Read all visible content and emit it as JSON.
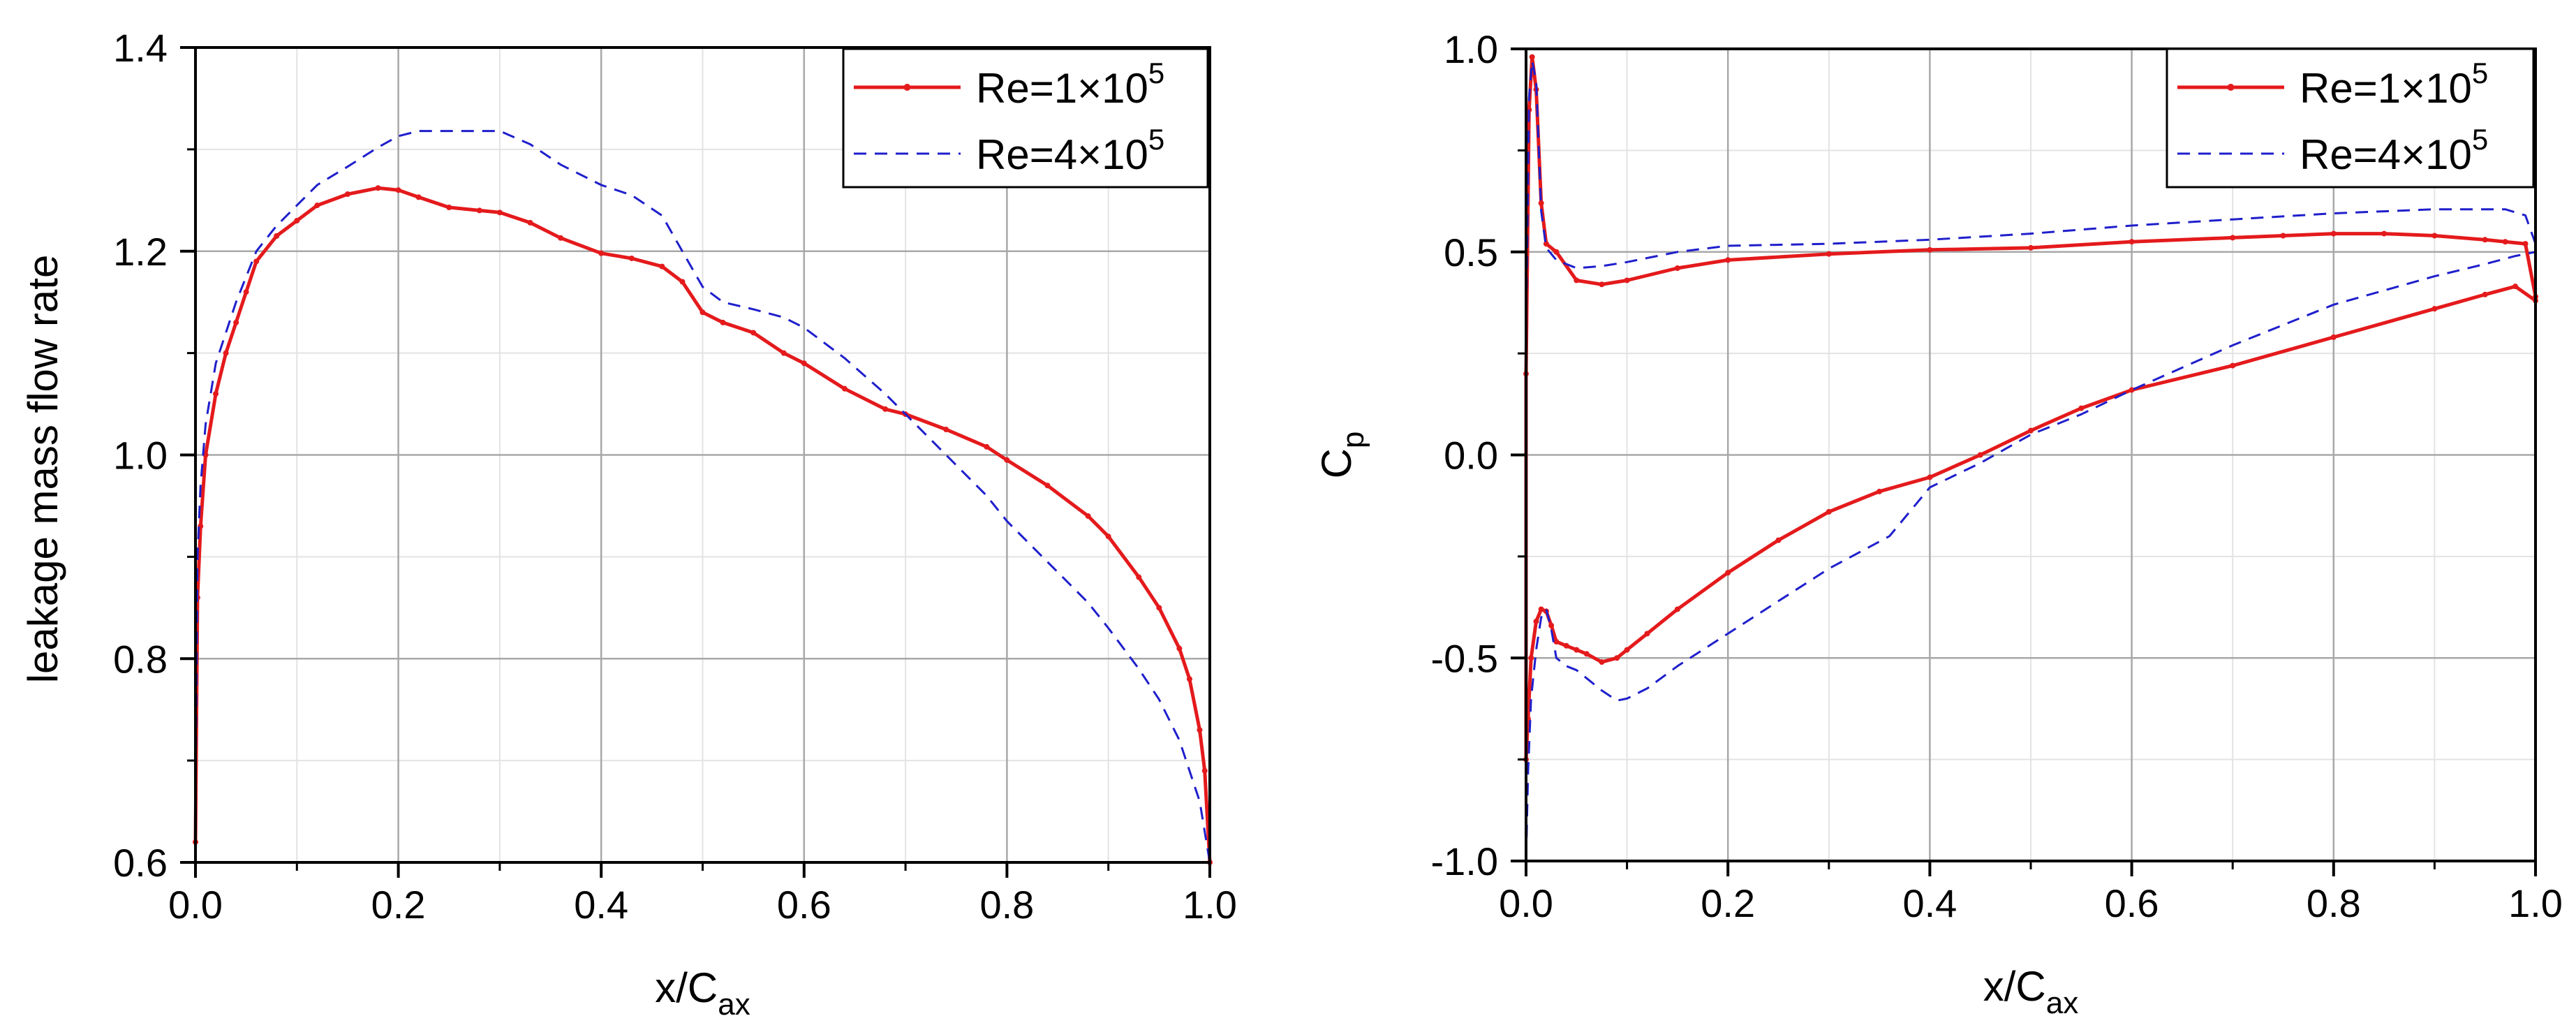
{
  "chart_data": [
    {
      "type": "line",
      "xlabel": {
        "main": "x/C",
        "sub": "ax"
      },
      "ylabel": "leakage mass flow rate",
      "xlim": [
        0.0,
        1.0
      ],
      "ylim": [
        0.6,
        1.4
      ],
      "xticks": [
        "0.0",
        "0.2",
        "0.4",
        "0.6",
        "0.8",
        "1.0"
      ],
      "yticks": [
        "0.6",
        "0.8",
        "1.0",
        "1.2",
        "1.4"
      ],
      "legend_position": "top-right",
      "series": [
        {
          "name": "Re=1×10⁵",
          "label": {
            "base": "Re=1×10",
            "exp": "5"
          },
          "color": "#e41a1c",
          "style": "solid",
          "x": [
            0.0,
            0.002,
            0.005,
            0.01,
            0.02,
            0.03,
            0.04,
            0.05,
            0.06,
            0.08,
            0.1,
            0.12,
            0.15,
            0.18,
            0.2,
            0.22,
            0.25,
            0.28,
            0.3,
            0.33,
            0.36,
            0.4,
            0.43,
            0.46,
            0.48,
            0.5,
            0.52,
            0.55,
            0.58,
            0.6,
            0.64,
            0.68,
            0.7,
            0.74,
            0.78,
            0.8,
            0.84,
            0.88,
            0.9,
            0.93,
            0.95,
            0.97,
            0.98,
            0.99,
            0.995,
            1.0
          ],
          "y": [
            0.62,
            0.86,
            0.93,
            1.0,
            1.06,
            1.1,
            1.13,
            1.16,
            1.19,
            1.215,
            1.23,
            1.245,
            1.256,
            1.262,
            1.26,
            1.253,
            1.243,
            1.24,
            1.238,
            1.228,
            1.213,
            1.198,
            1.193,
            1.185,
            1.17,
            1.14,
            1.13,
            1.12,
            1.1,
            1.09,
            1.065,
            1.045,
            1.04,
            1.025,
            1.008,
            0.995,
            0.97,
            0.94,
            0.92,
            0.88,
            0.85,
            0.81,
            0.78,
            0.73,
            0.69,
            0.6
          ]
        },
        {
          "name": "Re=4×10⁵",
          "label": {
            "base": "Re=4×10",
            "exp": "5"
          },
          "color": "#1f1fcc",
          "style": "dashed",
          "x": [
            0.0,
            0.002,
            0.005,
            0.01,
            0.02,
            0.04,
            0.06,
            0.08,
            0.1,
            0.12,
            0.15,
            0.18,
            0.2,
            0.22,
            0.25,
            0.28,
            0.3,
            0.33,
            0.36,
            0.4,
            0.43,
            0.46,
            0.48,
            0.5,
            0.52,
            0.55,
            0.58,
            0.6,
            0.64,
            0.68,
            0.7,
            0.74,
            0.78,
            0.8,
            0.84,
            0.88,
            0.9,
            0.93,
            0.95,
            0.97,
            0.98,
            0.99,
            1.0
          ],
          "y": [
            0.65,
            0.9,
            0.97,
            1.03,
            1.09,
            1.15,
            1.2,
            1.225,
            1.245,
            1.265,
            1.283,
            1.302,
            1.313,
            1.318,
            1.318,
            1.318,
            1.318,
            1.305,
            1.285,
            1.265,
            1.255,
            1.235,
            1.2,
            1.165,
            1.15,
            1.143,
            1.135,
            1.125,
            1.095,
            1.06,
            1.04,
            1.0,
            0.96,
            0.935,
            0.895,
            0.855,
            0.83,
            0.79,
            0.76,
            0.72,
            0.69,
            0.66,
            0.6
          ]
        }
      ]
    },
    {
      "type": "line",
      "xlabel": {
        "main": "x/C",
        "sub": "ax"
      },
      "ylabel": {
        "main": "C",
        "sub": "p"
      },
      "xlim": [
        0.0,
        1.0
      ],
      "ylim": [
        -1.0,
        1.0
      ],
      "xticks": [
        "0.0",
        "0.2",
        "0.4",
        "0.6",
        "0.8",
        "1.0"
      ],
      "yticks": [
        "-1.0",
        "-0.5",
        "0.0",
        "0.5",
        "1.0"
      ],
      "legend_position": "top-right",
      "series": [
        {
          "name": "Re=1×10⁵",
          "label": {
            "base": "Re=1×10",
            "exp": "5"
          },
          "color": "#e41a1c",
          "style": "solid",
          "x": [
            1.0,
            0.99,
            0.97,
            0.95,
            0.9,
            0.85,
            0.8,
            0.75,
            0.7,
            0.6,
            0.5,
            0.4,
            0.3,
            0.2,
            0.15,
            0.1,
            0.075,
            0.05,
            0.03,
            0.02,
            0.015,
            0.01,
            0.006,
            0.003,
            0.0,
            0.0,
            0.002,
            0.005,
            0.01,
            0.015,
            0.02,
            0.025,
            0.03,
            0.04,
            0.05,
            0.06,
            0.075,
            0.09,
            0.1,
            0.12,
            0.15,
            0.2,
            0.25,
            0.3,
            0.35,
            0.4,
            0.45,
            0.5,
            0.55,
            0.6,
            0.7,
            0.8,
            0.9,
            0.95,
            0.98,
            1.0
          ],
          "y": [
            0.39,
            0.52,
            0.525,
            0.53,
            0.54,
            0.545,
            0.545,
            0.54,
            0.535,
            0.525,
            0.51,
            0.505,
            0.495,
            0.48,
            0.46,
            0.43,
            0.42,
            0.43,
            0.5,
            0.52,
            0.62,
            0.9,
            0.98,
            0.85,
            0.2,
            -0.75,
            -0.65,
            -0.5,
            -0.41,
            -0.38,
            -0.385,
            -0.42,
            -0.46,
            -0.47,
            -0.48,
            -0.49,
            -0.51,
            -0.5,
            -0.48,
            -0.44,
            -0.38,
            -0.29,
            -0.21,
            -0.14,
            -0.09,
            -0.055,
            0.0,
            0.06,
            0.115,
            0.16,
            0.22,
            0.29,
            0.36,
            0.395,
            0.415,
            0.38
          ]
        },
        {
          "name": "Re=4×10⁵",
          "label": {
            "base": "Re=4×10",
            "exp": "5"
          },
          "color": "#1f1fcc",
          "style": "dashed",
          "x": [
            1.0,
            0.99,
            0.97,
            0.95,
            0.9,
            0.85,
            0.8,
            0.7,
            0.6,
            0.5,
            0.4,
            0.3,
            0.2,
            0.15,
            0.1,
            0.075,
            0.05,
            0.03,
            0.02,
            0.015,
            0.01,
            0.006,
            0.003,
            0.0,
            0.0,
            0.002,
            0.005,
            0.01,
            0.015,
            0.02,
            0.025,
            0.03,
            0.04,
            0.05,
            0.06,
            0.075,
            0.09,
            0.1,
            0.12,
            0.15,
            0.2,
            0.25,
            0.3,
            0.33,
            0.36,
            0.4,
            0.45,
            0.5,
            0.55,
            0.6,
            0.7,
            0.8,
            0.9,
            0.95,
            0.98,
            1.0
          ],
          "y": [
            0.52,
            0.59,
            0.605,
            0.605,
            0.605,
            0.6,
            0.595,
            0.58,
            0.565,
            0.545,
            0.53,
            0.52,
            0.515,
            0.5,
            0.475,
            0.465,
            0.46,
            0.48,
            0.51,
            0.6,
            0.92,
            0.97,
            0.88,
            0.3,
            -1.0,
            -0.78,
            -0.6,
            -0.48,
            -0.4,
            -0.38,
            -0.43,
            -0.5,
            -0.52,
            -0.53,
            -0.55,
            -0.58,
            -0.605,
            -0.6,
            -0.575,
            -0.52,
            -0.44,
            -0.36,
            -0.28,
            -0.24,
            -0.2,
            -0.08,
            -0.02,
            0.05,
            0.1,
            0.16,
            0.27,
            0.37,
            0.44,
            0.47,
            0.49,
            0.5
          ]
        }
      ]
    }
  ]
}
